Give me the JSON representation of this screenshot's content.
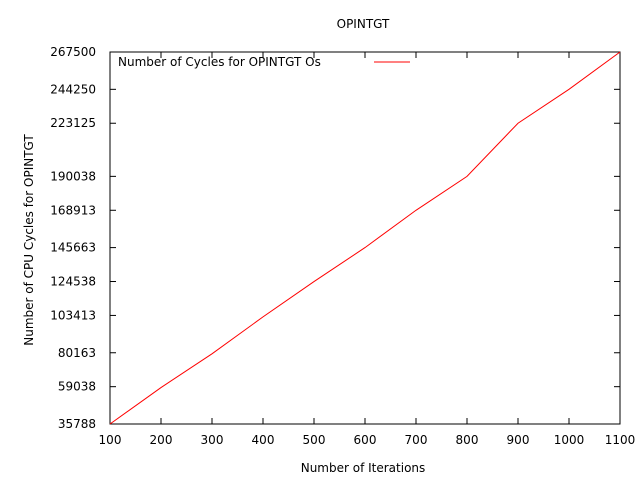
{
  "chart_data": {
    "type": "line",
    "title": "OPINTGT",
    "xlabel": "Number of Iterations",
    "ylabel": "Number of CPU Cycles for OPINTGT",
    "xlim": [
      100,
      1100
    ],
    "ylim": [
      35788,
      267500
    ],
    "x_ticks": [
      100,
      200,
      300,
      400,
      500,
      600,
      700,
      800,
      900,
      1000,
      1100
    ],
    "y_ticks": [
      35788,
      59038,
      80163,
      103413,
      124538,
      145663,
      168913,
      190038,
      223125,
      244250,
      267500
    ],
    "legend_position": "top-left",
    "grid": false,
    "series": [
      {
        "name": "Number of Cycles for OPINTGT Os",
        "color": "#ff0000",
        "x": [
          100,
          200,
          300,
          400,
          500,
          600,
          700,
          800,
          900,
          1000,
          1100
        ],
        "y": [
          35788,
          58500,
          79500,
          102500,
          124500,
          145663,
          168913,
          190038,
          223125,
          244250,
          267500
        ]
      }
    ]
  }
}
